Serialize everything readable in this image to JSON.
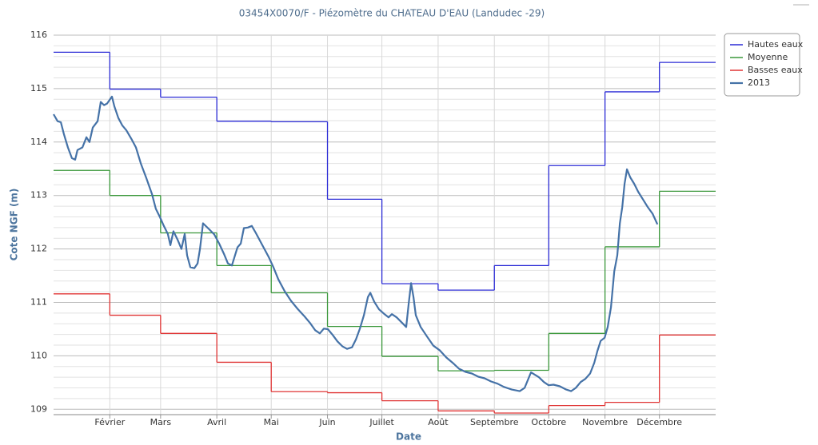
{
  "chart_data": {
    "type": "line",
    "title": "03454X0070/F - Piézomètre du CHATEAU D'EAU (Landudec -29)",
    "x_label": "Date",
    "y_label": "Cote NGF (m)",
    "xlim": [
      0,
      365
    ],
    "xticks": [
      {
        "value": 31,
        "label": "Février"
      },
      {
        "value": 59,
        "label": "Mars"
      },
      {
        "value": 90,
        "label": "Avril"
      },
      {
        "value": 120,
        "label": "Mai"
      },
      {
        "value": 151,
        "label": "Juin"
      },
      {
        "value": 181,
        "label": "Juillet"
      },
      {
        "value": 212,
        "label": "Août"
      },
      {
        "value": 243,
        "label": "Septembre"
      },
      {
        "value": 273,
        "label": "Octobre"
      },
      {
        "value": 304,
        "label": "Novembre"
      },
      {
        "value": 334,
        "label": "Décembre"
      }
    ],
    "ylim": [
      108.9,
      116
    ],
    "yticks": [
      109,
      110,
      111,
      112,
      113,
      114,
      115,
      116
    ],
    "grid": true,
    "legend": "top-right",
    "series": [
      {
        "name": "Hautes eaux",
        "color": "#2b2bd6",
        "step": true,
        "x": [
          0,
          31,
          59,
          90,
          120,
          151,
          181,
          212,
          243,
          273,
          304,
          334
        ],
        "values": [
          115.68,
          114.99,
          114.84,
          114.39,
          114.38,
          112.93,
          111.35,
          111.23,
          111.69,
          113.56,
          114.94,
          115.49
        ]
      },
      {
        "name": "Moyenne",
        "color": "#3a983a",
        "step": true,
        "x": [
          0,
          31,
          59,
          90,
          120,
          151,
          181,
          212,
          243,
          273,
          304,
          334
        ],
        "values": [
          113.47,
          113.0,
          112.3,
          111.69,
          111.18,
          110.55,
          109.99,
          109.72,
          109.73,
          110.42,
          112.04,
          113.08
        ]
      },
      {
        "name": "Basses eaux",
        "color": "#e03434",
        "step": true,
        "x": [
          0,
          31,
          59,
          90,
          120,
          151,
          181,
          212,
          243,
          273,
          304,
          334
        ],
        "values": [
          111.16,
          110.76,
          110.42,
          109.88,
          109.33,
          109.31,
          109.16,
          108.97,
          108.93,
          109.07,
          109.13,
          110.39
        ]
      },
      {
        "name": "2013",
        "color": "#4572a7",
        "step": false,
        "x": [
          0,
          2.2,
          4,
          5.7,
          7.9,
          10.1,
          11.9,
          13.2,
          15.9,
          18.1,
          19.8,
          21.6,
          24.3,
          26,
          27.8,
          29.5,
          32.2,
          33.5,
          35.7,
          37.9,
          40.1,
          43.2,
          45.4,
          48.1,
          51.1,
          54.2,
          56.4,
          58.6,
          60.8,
          63,
          64.4,
          66.1,
          68.3,
          70.5,
          72.3,
          73.6,
          75.4,
          77.6,
          79.4,
          80.7,
          82.4,
          84.2,
          86,
          88.6,
          91.3,
          93.9,
          96.1,
          98.3,
          101.4,
          103.2,
          104.9,
          107.1,
          109.3,
          111.5,
          115.1,
          118.6,
          121.2,
          123.9,
          127.4,
          130.9,
          134.5,
          138,
          141.5,
          144.2,
          146.8,
          149,
          151.2,
          153.9,
          156.5,
          159.2,
          161.8,
          164.5,
          166.7,
          168.9,
          171.1,
          173.3,
          174.6,
          176.8,
          179.4,
          182.1,
          184.7,
          186.5,
          189.1,
          191.8,
          194.4,
          195.8,
          197.1,
          198.4,
          199.7,
          202.4,
          205.9,
          209.4,
          213,
          216.5,
          220,
          223.5,
          227.1,
          230.6,
          234.1,
          237.6,
          241.2,
          244.7,
          248.2,
          252.6,
          257,
          259.7,
          261.5,
          263.2,
          267.6,
          270.3,
          272.9,
          275.6,
          279.1,
          282.6,
          285.3,
          287.9,
          290.6,
          293.2,
          295.8,
          298.1,
          299.8,
          301.6,
          303.8,
          305.5,
          307.3,
          309.1,
          310.8,
          312.2,
          313.5,
          314.8,
          316.1,
          317.9,
          320.1,
          322.3,
          324.9,
          327.6,
          330.2,
          332.9
        ],
        "values": [
          114.52,
          114.39,
          114.37,
          114.15,
          113.9,
          113.7,
          113.67,
          113.85,
          113.9,
          114.09,
          114.0,
          114.27,
          114.39,
          114.75,
          114.69,
          114.72,
          114.85,
          114.67,
          114.45,
          114.31,
          114.22,
          114.04,
          113.9,
          113.6,
          113.33,
          113.03,
          112.75,
          112.6,
          112.43,
          112.28,
          112.07,
          112.33,
          112.18,
          112.0,
          112.28,
          111.88,
          111.66,
          111.64,
          111.73,
          112.0,
          112.48,
          112.42,
          112.36,
          112.27,
          112.1,
          111.91,
          111.73,
          111.69,
          112.03,
          112.1,
          112.39,
          112.4,
          112.43,
          112.3,
          112.07,
          111.85,
          111.66,
          111.43,
          111.21,
          111.03,
          110.88,
          110.75,
          110.61,
          110.48,
          110.42,
          110.51,
          110.5,
          110.39,
          110.27,
          110.18,
          110.13,
          110.16,
          110.31,
          110.51,
          110.76,
          111.1,
          111.18,
          111.01,
          110.87,
          110.79,
          110.72,
          110.78,
          110.72,
          110.63,
          110.54,
          110.99,
          111.36,
          111.1,
          110.76,
          110.54,
          110.36,
          110.19,
          110.1,
          109.97,
          109.87,
          109.76,
          109.7,
          109.67,
          109.61,
          109.58,
          109.52,
          109.48,
          109.42,
          109.37,
          109.34,
          109.4,
          109.55,
          109.69,
          109.6,
          109.51,
          109.45,
          109.46,
          109.43,
          109.37,
          109.34,
          109.4,
          109.51,
          109.57,
          109.67,
          109.87,
          110.09,
          110.28,
          110.34,
          110.54,
          110.91,
          111.58,
          111.88,
          112.48,
          112.78,
          113.22,
          113.49,
          113.34,
          113.22,
          113.07,
          112.93,
          112.78,
          112.66,
          112.46
        ]
      }
    ]
  }
}
